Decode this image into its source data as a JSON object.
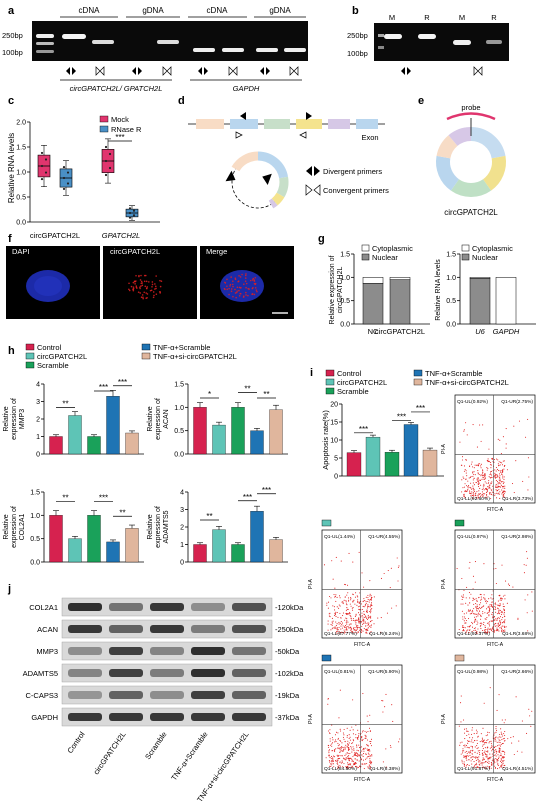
{
  "figure": {
    "panel_letters": [
      "a",
      "b",
      "c",
      "d",
      "e",
      "f",
      "g",
      "h",
      "i",
      "j"
    ],
    "colors": {
      "control": "#d6224f",
      "circ": "#5ec4b6",
      "scramble": "#1aa15a",
      "tnf_scramble": "#1f74b4",
      "tnf_si": "#e0b69d",
      "mock": "#e0356e",
      "rnase": "#4a90c6",
      "cytoplasmic": "#ffffff",
      "nuclear": "#8c8c8c",
      "dot_red": "#e02020",
      "gel_bg": "#0a0a0a",
      "ring": [
        "#b9d6ee",
        "#f8dcc5",
        "#c7dfc9",
        "#f4e38e",
        "#d6c8e6"
      ]
    },
    "panel_a": {
      "header_labels": [
        "cDNA",
        "gDNA",
        "cDNA",
        "gDNA"
      ],
      "ladder_top": "250bp",
      "ladder_bottom": "100bp",
      "gene_left": "circGPATCH2L/ GPATCH2L",
      "gene_right": "GAPDH"
    },
    "panel_b": {
      "lanes": [
        "M",
        "R",
        "M",
        "R"
      ],
      "ladder_top": "250bp",
      "ladder_bottom": "100bp"
    },
    "panel_c": {
      "ylabel": "Relative RNA levels",
      "legend": [
        "Mock",
        "RNase R"
      ],
      "categories": [
        "circGPATCH2L",
        "GPATCH2L"
      ],
      "yticks": [
        "0.0",
        "0.5",
        "1.0",
        "1.5",
        "2.0"
      ],
      "sig": "***"
    },
    "panel_d": {
      "exon_label": "Exon",
      "legend_divergent": "Divergent primers",
      "legend_convergent": "Convergent primers"
    },
    "panel_e": {
      "probe_label": "probe",
      "name": "circGPATCH2L"
    },
    "panel_f": {
      "labels": [
        "DAPI",
        "circGPATCH2L",
        "Merge"
      ]
    },
    "panel_g": {
      "left": {
        "legend": [
          "Cytoplasmic",
          "Nuclear"
        ],
        "ylabel_line1": "Relative expression of",
        "ylabel_line2": "circGPATCH2L",
        "categories": [
          "NC",
          "circGPATCH2L"
        ],
        "yticks": [
          "0.0",
          "0.5",
          "1.0",
          "1.5"
        ]
      },
      "right": {
        "legend": [
          "Cytoplasmic",
          "Nuclear"
        ],
        "ylabel": "Relative RNA levels",
        "categories": [
          "U6",
          "GAPDH"
        ],
        "yticks": [
          "0.0",
          "0.5",
          "1.0",
          "1.5"
        ]
      }
    },
    "legend_groups": [
      "Control",
      "circGPATCH2L",
      "Scramble",
      "TNF-α+Scramble",
      "TNF-α+si-circGPATCH2L"
    ],
    "panel_h": {
      "yticks_small": [
        "0.0",
        "0.5",
        "1.0",
        "1.5"
      ],
      "charts": [
        {
          "ylabel1": "Relative",
          "ylabel2": "expression of",
          "ylabel3": "MMP3",
          "sig": [
            "**",
            "***",
            "***"
          ]
        },
        {
          "ylabel1": "Relative",
          "ylabel2": "expression of",
          "ylabel3": "ACAN",
          "sig": [
            "*",
            "**",
            "**"
          ]
        },
        {
          "ylabel1": "Relative",
          "ylabel2": "expression of",
          "ylabel3": "COL2A1",
          "sig": [
            "**",
            "***",
            "**"
          ]
        },
        {
          "ylabel1": "Relative",
          "ylabel2": "expression of",
          "ylabel3": "ADAMTS5",
          "sig": [
            "**",
            "***",
            "***"
          ]
        }
      ],
      "mmp3_yticks": [
        "0",
        "1",
        "2",
        "3",
        "4"
      ],
      "adamts5_yticks": [
        "0",
        "1",
        "2",
        "3",
        "4"
      ]
    },
    "panel_i": {
      "ylabel": "Apoptosis rate(%)",
      "yticks": [
        "0",
        "5",
        "10",
        "15",
        "20"
      ],
      "sig": [
        "***",
        "***",
        "***"
      ],
      "flow": [
        {
          "ul": "Q1-UL(0.92%)",
          "ur": "Q1-UR(2.75%)",
          "ll": "Q1-LL(92.60%)",
          "lr": "Q1-LR(3.73%)"
        },
        {
          "ul": "Q1-UL(1.44%)",
          "ur": "Q1-UR(4.55%)",
          "ll": "Q1-LL(87.77%)",
          "lr": "Q1-LR(6.24%)"
        },
        {
          "ul": "Q1-UL(0.97%)",
          "ur": "Q1-UR(2.98%)",
          "ll": "Q1-LL(92.37%)",
          "lr": "Q1-LR(3.68%)"
        },
        {
          "ul": "Q1-UL(0.81%)",
          "ur": "Q1-UR(5.90%)",
          "ll": "Q1-LL(84.50%)",
          "lr": "Q1-LR(8.38%)"
        },
        {
          "ul": "Q1-UL(0.98%)",
          "ur": "Q1-UR(2.66%)",
          "ll": "Q1-LL(91.87%)",
          "lr": "Q1-LR(4.51%)"
        }
      ],
      "xlab": "FITC-A",
      "ylab": "PI-A"
    },
    "panel_j": {
      "proteins": [
        "COL2A1",
        "ACAN",
        "MMP3",
        "ADAMTS5",
        "C-CAPS3",
        "GAPDH"
      ],
      "sizes": [
        "-120kDa",
        "-250kDa",
        "-50kDa",
        "-102kDa",
        "-19kDa",
        "-37kDa"
      ],
      "lanes": [
        "Control",
        "circGPATCH2L",
        "Scramble",
        "TNF-α+Scramble",
        "TNF-α+si-circGPATCH2L"
      ]
    }
  },
  "chart_data": [
    {
      "type": "bar",
      "title": "",
      "ylabel": "Relative RNA levels",
      "categories": [
        "circGPATCH2L",
        "GPATCH2L"
      ],
      "series": [
        {
          "name": "Mock",
          "values": [
            1.12,
            1.22
          ]
        },
        {
          "name": "RNase R",
          "values": [
            0.88,
            0.18
          ]
        }
      ],
      "ylim": [
        0,
        2
      ]
    },
    {
      "type": "bar",
      "ylabel": "Relative expression of circGPATCH2L",
      "categories": [
        "NC",
        "circGPATCH2L"
      ],
      "series": [
        {
          "name": "Cytoplasmic",
          "values": [
            0.13,
            0.05
          ]
        },
        {
          "name": "Nuclear",
          "values": [
            0.87,
            0.95
          ]
        }
      ],
      "ylim": [
        0,
        1.5
      ]
    },
    {
      "type": "bar",
      "ylabel": "Relative RNA levels",
      "categories": [
        "U6",
        "GAPDH"
      ],
      "series": [
        {
          "name": "Cytoplasmic",
          "values": [
            0.02,
            1.0
          ]
        },
        {
          "name": "Nuclear",
          "values": [
            0.98,
            0.0
          ]
        }
      ],
      "ylim": [
        0,
        1.5
      ]
    },
    {
      "type": "bar",
      "ylabel": "Relative expression of MMP3",
      "categories": [
        "Control",
        "circGPATCH2L",
        "Scramble",
        "TNF-α+Scramble",
        "TNF-α+si-circGPATCH2L"
      ],
      "values": [
        1.0,
        2.2,
        1.0,
        3.3,
        1.2
      ],
      "ylim": [
        0,
        4
      ]
    },
    {
      "type": "bar",
      "ylabel": "Relative expression of ACAN",
      "categories": [
        "Control",
        "circGPATCH2L",
        "Scramble",
        "TNF-α+Scramble",
        "TNF-α+si-circGPATCH2L"
      ],
      "values": [
        1.0,
        0.62,
        1.0,
        0.5,
        0.95
      ],
      "ylim": [
        0,
        1.5
      ]
    },
    {
      "type": "bar",
      "ylabel": "Relative expression of COL2A1",
      "categories": [
        "Control",
        "circGPATCH2L",
        "Scramble",
        "TNF-α+Scramble",
        "TNF-α+si-circGPATCH2L"
      ],
      "values": [
        1.0,
        0.5,
        1.0,
        0.43,
        0.72
      ],
      "ylim": [
        0,
        1.5
      ]
    },
    {
      "type": "bar",
      "ylabel": "Relative expression of ADAMTS5",
      "categories": [
        "Control",
        "circGPATCH2L",
        "Scramble",
        "TNF-α+Scramble",
        "TNF-α+si-circGPATCH2L"
      ],
      "values": [
        1.0,
        1.85,
        1.0,
        2.9,
        1.28
      ],
      "ylim": [
        0,
        4
      ]
    },
    {
      "type": "bar",
      "ylabel": "Apoptosis rate(%)",
      "categories": [
        "Control",
        "circGPATCH2L",
        "Scramble",
        "TNF-α+Scramble",
        "TNF-α+si-circGPATCH2L"
      ],
      "values": [
        6.5,
        10.8,
        6.6,
        14.3,
        7.2
      ],
      "ylim": [
        0,
        20
      ]
    }
  ]
}
